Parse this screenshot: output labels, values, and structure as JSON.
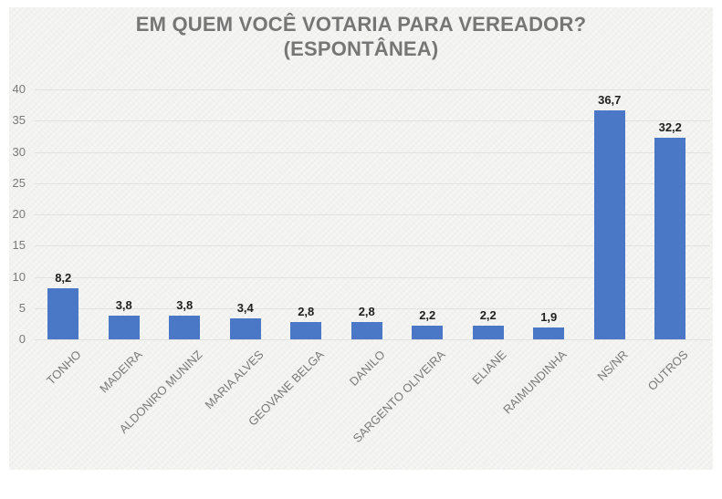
{
  "page": {
    "background": "#ffffff",
    "plot_background": "#f2f2f1"
  },
  "chart_data": {
    "type": "bar",
    "title_line1": "EM QUEM VOCÊ VOTARIA PARA VEREADOR?",
    "title_line2": "(ESPONTÂNEA)",
    "categories": [
      "TONHO",
      "MADEIRA",
      "ALDONIRO MUNINZ",
      "MARIA ALVES",
      "GEOVANE BELGA",
      "DANILO",
      "SARGENTO OLIVEIRA",
      "ELIANE",
      "RAIMUNDINHA",
      "NS/NR",
      "OUTROS"
    ],
    "values": [
      8.2,
      3.8,
      3.8,
      3.4,
      2.8,
      2.8,
      2.2,
      2.2,
      1.9,
      36.7,
      32.2
    ],
    "value_labels": [
      "8,2",
      "3,8",
      "3,8",
      "3,4",
      "2,8",
      "2,8",
      "2,2",
      "2,2",
      "1,9",
      "36,7",
      "32,2"
    ],
    "y_ticks": [
      0,
      5,
      10,
      15,
      20,
      25,
      30,
      35,
      40
    ],
    "ylim": [
      0,
      40
    ],
    "xlabel": "",
    "ylabel": "",
    "grid": true,
    "legend_position": "none",
    "decimal_separator": ",",
    "colors": {
      "bar": "#4a78c6",
      "title": "#767676",
      "axis_labels": "#7a7a7a",
      "data_labels": "#1f1f1f",
      "gridline": "#e1e1df"
    }
  }
}
